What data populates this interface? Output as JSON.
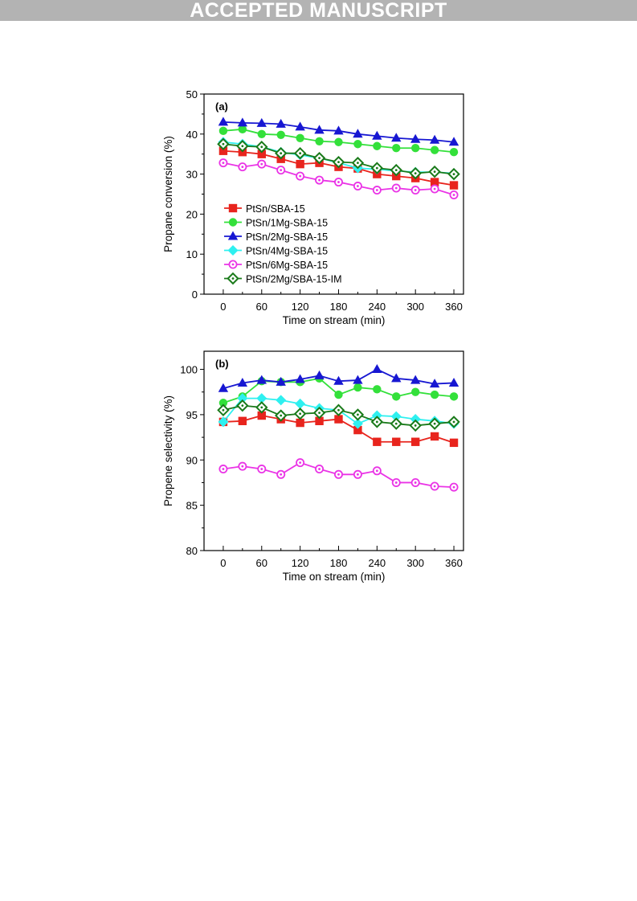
{
  "header": {
    "banner": "ACCEPTED MANUSCRIPT"
  },
  "colors": {
    "PtSn/SBA-15": "#e8241d",
    "PtSn/1Mg-SBA-15": "#33e03a",
    "PtSn/2Mg-SBA-15": "#1717d2",
    "PtSn/4Mg-SBA-15": "#2ef0f0",
    "PtSn/6Mg-SBA-15": "#ea34e6",
    "PtSn/2Mg/SBA-15-IM": "#1a7a1a"
  },
  "chart_data": [
    {
      "type": "line",
      "panel_label": "(a)",
      "xlabel": "Time on stream (min)",
      "ylabel": "Propane conversion (%)",
      "xlim": [
        -30,
        375
      ],
      "ylim": [
        0,
        50
      ],
      "xticks": [
        0,
        60,
        120,
        180,
        240,
        300,
        360
      ],
      "yticks": [
        0,
        10,
        20,
        30,
        40,
        50
      ],
      "legend_position": "lower-left",
      "x": [
        0,
        30,
        60,
        90,
        120,
        150,
        180,
        210,
        240,
        270,
        300,
        330,
        360
      ],
      "series": [
        {
          "name": "PtSn/SBA-15",
          "marker": "square",
          "values": [
            35.8,
            35.5,
            35.0,
            33.8,
            32.5,
            32.8,
            31.8,
            31.4,
            30.0,
            29.5,
            29.0,
            28.0,
            27.2
          ]
        },
        {
          "name": "PtSn/1Mg-SBA-15",
          "marker": "circle",
          "values": [
            40.8,
            41.2,
            40.0,
            39.8,
            39.0,
            38.2,
            38.0,
            37.5,
            37.0,
            36.5,
            36.5,
            36.0,
            35.5
          ]
        },
        {
          "name": "PtSn/2Mg-SBA-15",
          "marker": "triangle",
          "values": [
            43.0,
            42.8,
            42.7,
            42.5,
            41.8,
            41.0,
            40.8,
            40.0,
            39.5,
            39.0,
            38.7,
            38.5,
            38.0
          ]
        },
        {
          "name": "PtSn/4Mg-SBA-15",
          "marker": "diamond",
          "values": [
            38.0,
            37.5,
            36.8,
            35.5,
            34.8,
            34.0,
            32.8,
            31.5,
            31.2,
            30.8,
            30.5,
            30.5,
            30.2
          ]
        },
        {
          "name": "PtSn/6Mg-SBA-15",
          "marker": "circle-open",
          "values": [
            32.8,
            31.8,
            32.5,
            31.0,
            29.5,
            28.5,
            28.0,
            27.0,
            26.0,
            26.5,
            26.0,
            26.3,
            24.8
          ]
        },
        {
          "name": "PtSn/2Mg/SBA-15-IM",
          "marker": "diamond-open",
          "values": [
            37.5,
            37.0,
            36.8,
            35.2,
            35.2,
            34.0,
            33.0,
            32.8,
            31.5,
            31.0,
            30.2,
            30.6,
            30.0
          ]
        }
      ]
    },
    {
      "type": "line",
      "panel_label": "(b)",
      "xlabel": "Time on stream (min)",
      "ylabel": "Propene selectivity (%)",
      "xlim": [
        -30,
        375
      ],
      "ylim": [
        80,
        102
      ],
      "xticks": [
        0,
        60,
        120,
        180,
        240,
        300,
        360
      ],
      "yticks": [
        80,
        85,
        90,
        95,
        100
      ],
      "x": [
        0,
        30,
        60,
        90,
        120,
        150,
        180,
        210,
        240,
        270,
        300,
        330,
        360
      ],
      "series": [
        {
          "name": "PtSn/SBA-15",
          "marker": "square",
          "values": [
            94.2,
            94.3,
            94.9,
            94.5,
            94.1,
            94.3,
            94.5,
            93.3,
            92.0,
            92.0,
            92.0,
            92.6,
            91.9
          ]
        },
        {
          "name": "PtSn/1Mg-SBA-15",
          "marker": "circle",
          "values": [
            96.3,
            97.0,
            98.7,
            98.6,
            98.6,
            99.0,
            97.2,
            98.0,
            97.8,
            97.0,
            97.5,
            97.2,
            97.0
          ]
        },
        {
          "name": "PtSn/2Mg-SBA-15",
          "marker": "triangle",
          "values": [
            97.9,
            98.5,
            98.8,
            98.6,
            98.9,
            99.3,
            98.7,
            98.8,
            100.0,
            99.0,
            98.8,
            98.4,
            98.5
          ]
        },
        {
          "name": "PtSn/4Mg-SBA-15",
          "marker": "diamond",
          "values": [
            94.2,
            96.8,
            96.8,
            96.6,
            96.2,
            95.7,
            95.5,
            94.0,
            94.9,
            94.8,
            94.5,
            94.3,
            94.0
          ]
        },
        {
          "name": "PtSn/6Mg-SBA-15",
          "marker": "circle-open",
          "values": [
            89.0,
            89.3,
            89.0,
            88.4,
            89.7,
            89.0,
            88.4,
            88.4,
            88.8,
            87.5,
            87.5,
            87.1,
            87.0
          ]
        },
        {
          "name": "PtSn/2Mg/SBA-15-IM",
          "marker": "diamond-open",
          "values": [
            95.5,
            96.0,
            95.8,
            94.9,
            95.1,
            95.2,
            95.5,
            95.0,
            94.2,
            94.0,
            93.8,
            94.0,
            94.2
          ]
        }
      ]
    }
  ]
}
